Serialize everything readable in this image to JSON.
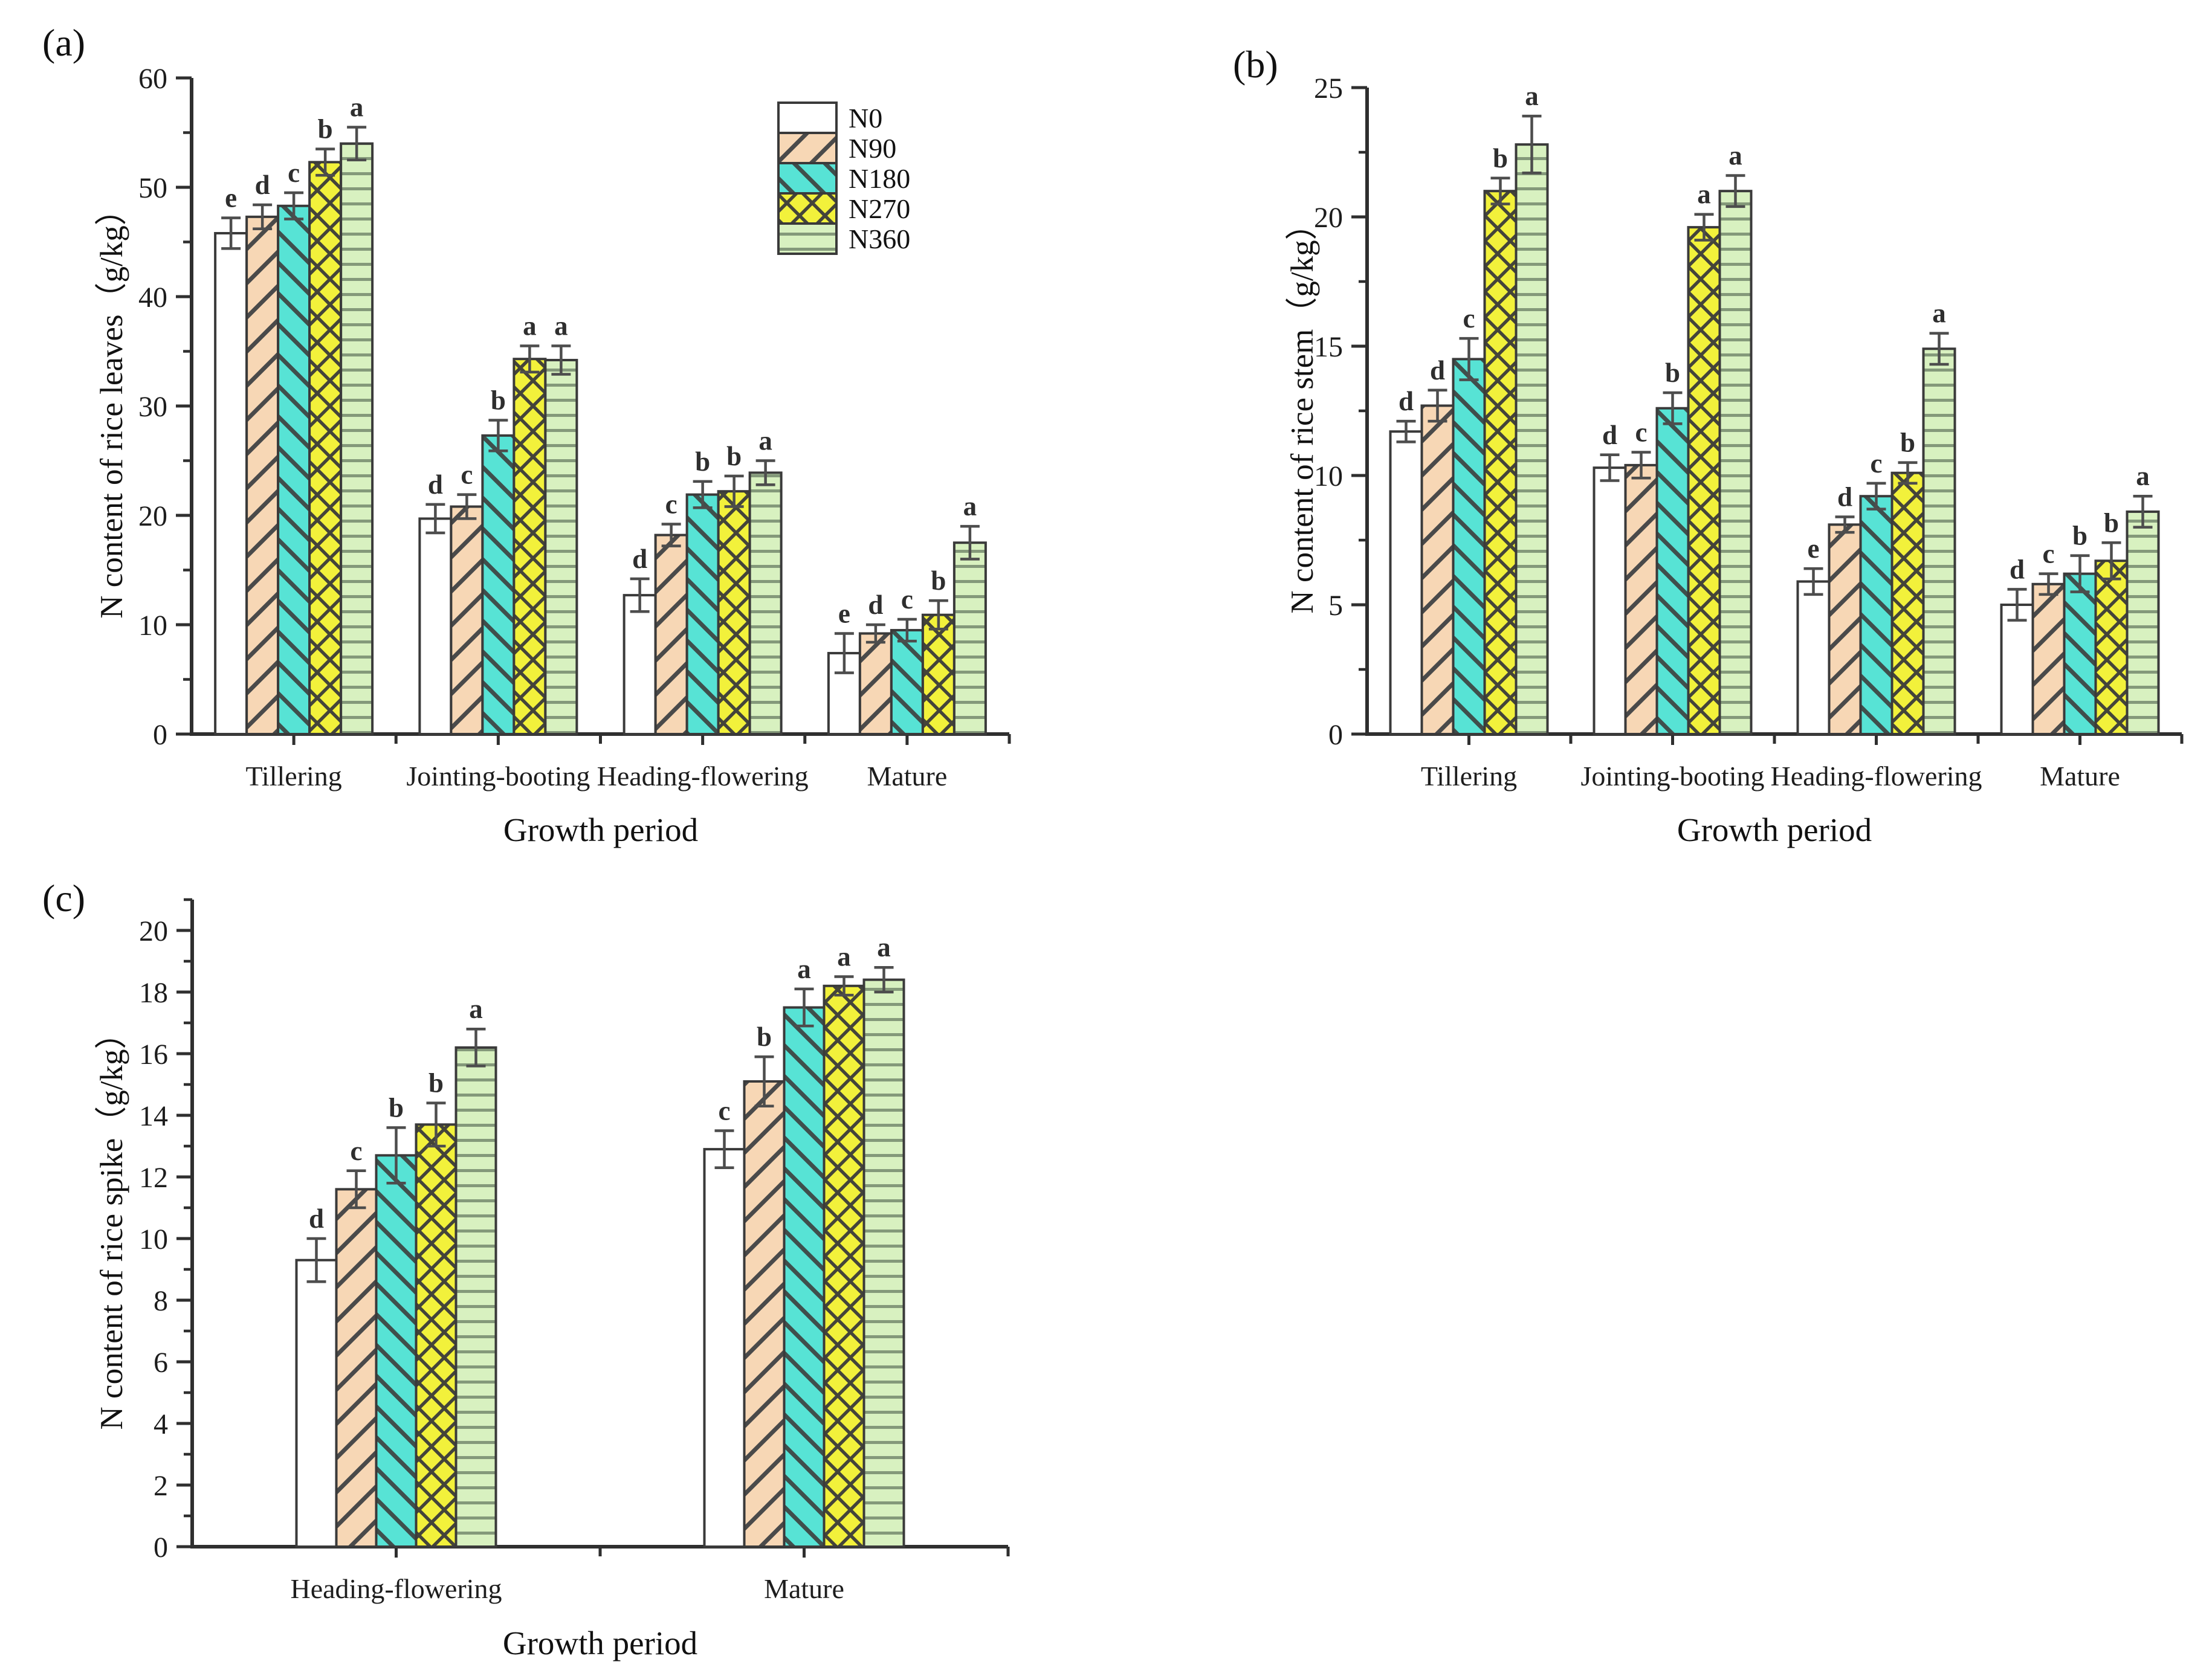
{
  "figure": {
    "background": "#ffffff"
  },
  "series_meta": {
    "n0": {
      "label": "N0",
      "fill": "#ffffff",
      "hatch": "none",
      "hatch_color": "#4a4a4a"
    },
    "n90": {
      "label": "N90",
      "fill": "#f7d7b5",
      "hatch": "diag-up",
      "hatch_color": "#4a4a4a"
    },
    "n180": {
      "label": "N180",
      "fill": "#57e3d5",
      "hatch": "diag-down",
      "hatch_color": "#3f4f4c"
    },
    "n270": {
      "label": "N270",
      "fill": "#f2f13b",
      "hatch": "cross",
      "hatch_color": "#44443a"
    },
    "n360": {
      "label": "N360",
      "fill": "#d8f1c0",
      "hatch": "horizontal",
      "hatch_color": "#84997a"
    }
  },
  "legend": {
    "position": "top-right-of-panel-a",
    "items": [
      {
        "series": "n0",
        "label": "N0"
      },
      {
        "series": "n90",
        "label": "N90"
      },
      {
        "series": "n180",
        "label": "N180"
      },
      {
        "series": "n270",
        "label": "N270"
      },
      {
        "series": "n360",
        "label": "N360"
      }
    ]
  },
  "chart_data": [
    {
      "id": "a",
      "panel": "(a)",
      "type": "bar",
      "ylabel": "N content of rice leaves（g/kg）",
      "xlabel": "Growth period",
      "ylim": [
        0,
        60
      ],
      "ytick_step": 10,
      "minor_tick_step": 5,
      "grid": false,
      "categories": [
        "Tillering",
        "Jointing-booting",
        "Heading-flowering",
        "Mature"
      ],
      "series": [
        {
          "name": "N0",
          "key": "n0",
          "values": [
            45.8,
            19.7,
            12.7,
            7.4
          ],
          "errors": [
            1.4,
            1.3,
            1.5,
            1.8
          ],
          "letters": [
            "e",
            "d",
            "d",
            "e"
          ]
        },
        {
          "name": "N90",
          "key": "n90",
          "values": [
            47.3,
            20.8,
            18.2,
            9.2
          ],
          "errors": [
            1.1,
            1.1,
            1.0,
            0.8
          ],
          "letters": [
            "d",
            "c",
            "c",
            "d"
          ]
        },
        {
          "name": "N180",
          "key": "n180",
          "values": [
            48.3,
            27.3,
            21.9,
            9.5
          ],
          "errors": [
            1.2,
            1.4,
            1.2,
            1.0
          ],
          "letters": [
            "c",
            "b",
            "b",
            "c"
          ]
        },
        {
          "name": "N270",
          "key": "n270",
          "values": [
            52.3,
            34.3,
            22.2,
            10.9
          ],
          "errors": [
            1.2,
            1.2,
            1.4,
            1.3
          ],
          "letters": [
            "b",
            "a",
            "b",
            "b"
          ]
        },
        {
          "name": "N360",
          "key": "n360",
          "values": [
            54.0,
            34.2,
            23.9,
            17.5
          ],
          "errors": [
            1.5,
            1.3,
            1.1,
            1.5
          ],
          "letters": [
            "a",
            "a",
            "a",
            "a"
          ]
        }
      ]
    },
    {
      "id": "b",
      "panel": "(b)",
      "type": "bar",
      "ylabel": "N content of rice stem（g/kg）",
      "xlabel": "Growth period",
      "ylim": [
        0,
        25
      ],
      "ytick_step": 5,
      "minor_tick_step": 2.5,
      "grid": false,
      "categories": [
        "Tillering",
        "Jointing-booting",
        "Heading-flowering",
        "Mature"
      ],
      "series": [
        {
          "name": "N0",
          "key": "n0",
          "values": [
            11.7,
            10.3,
            5.9,
            5.0
          ],
          "errors": [
            0.4,
            0.5,
            0.5,
            0.6
          ],
          "letters": [
            "d",
            "d",
            "e",
            "d"
          ]
        },
        {
          "name": "N90",
          "key": "n90",
          "values": [
            12.7,
            10.4,
            8.1,
            5.8
          ],
          "errors": [
            0.6,
            0.5,
            0.3,
            0.4
          ],
          "letters": [
            "d",
            "c",
            "d",
            "c"
          ]
        },
        {
          "name": "N180",
          "key": "n180",
          "values": [
            14.5,
            12.6,
            9.2,
            6.2
          ],
          "errors": [
            0.8,
            0.6,
            0.5,
            0.7
          ],
          "letters": [
            "c",
            "b",
            "c",
            "b"
          ]
        },
        {
          "name": "N270",
          "key": "n270",
          "values": [
            21.0,
            19.6,
            10.1,
            6.7
          ],
          "errors": [
            0.5,
            0.5,
            0.4,
            0.7
          ],
          "letters": [
            "b",
            "a",
            "b",
            "b"
          ]
        },
        {
          "name": "N360",
          "key": "n360",
          "values": [
            22.8,
            21.0,
            14.9,
            8.6
          ],
          "errors": [
            1.1,
            0.6,
            0.6,
            0.6
          ],
          "letters": [
            "a",
            "a",
            "a",
            "a"
          ]
        }
      ]
    },
    {
      "id": "c",
      "panel": "(c)",
      "type": "bar",
      "ylabel": "N content of rice spike（g/kg）",
      "xlabel": "Growth period",
      "ylim": [
        0,
        20
      ],
      "ytick_step": 2,
      "minor_tick_step": 1,
      "axis_top_value": 21,
      "grid": false,
      "categories": [
        "Heading-flowering",
        "Mature"
      ],
      "series": [
        {
          "name": "N0",
          "key": "n0",
          "values": [
            9.3,
            12.9
          ],
          "errors": [
            0.7,
            0.6
          ],
          "letters": [
            "d",
            "c"
          ]
        },
        {
          "name": "N90",
          "key": "n90",
          "values": [
            11.6,
            15.1
          ],
          "errors": [
            0.6,
            0.8
          ],
          "letters": [
            "c",
            "b"
          ]
        },
        {
          "name": "N180",
          "key": "n180",
          "values": [
            12.7,
            17.5
          ],
          "errors": [
            0.9,
            0.6
          ],
          "letters": [
            "b",
            "a"
          ]
        },
        {
          "name": "N270",
          "key": "n270",
          "values": [
            13.7,
            18.2
          ],
          "errors": [
            0.7,
            0.3
          ],
          "letters": [
            "b",
            "a"
          ]
        },
        {
          "name": "N360",
          "key": "n360",
          "values": [
            16.2,
            18.4
          ],
          "errors": [
            0.6,
            0.4
          ],
          "letters": [
            "a",
            "a"
          ]
        }
      ]
    }
  ]
}
